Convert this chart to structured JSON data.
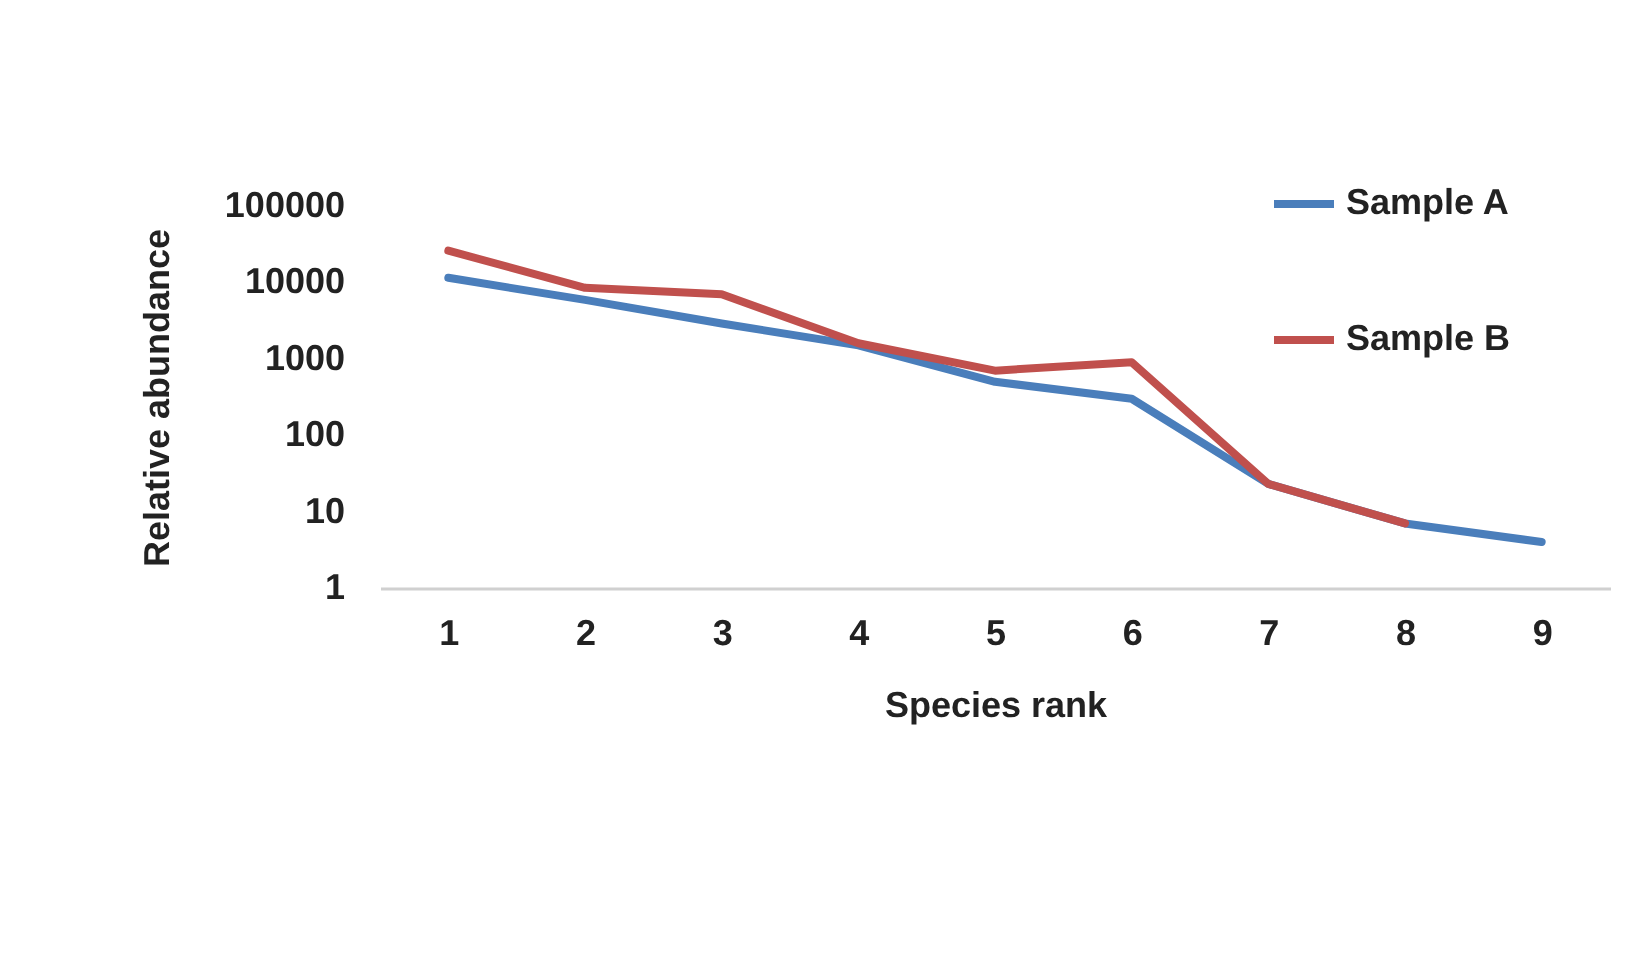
{
  "chart_data": {
    "type": "line",
    "xlabel": "Species rank",
    "ylabel": "Relative abundance",
    "categories": [
      "1",
      "2",
      "3",
      "4",
      "5",
      "6",
      "7",
      "8",
      "9"
    ],
    "series": [
      {
        "name": "Sample A",
        "color": "#4a7ebb",
        "values": [
          11500,
          5900,
          2900,
          1500,
          500,
          300,
          23,
          7,
          4
        ]
      },
      {
        "name": "Sample B",
        "color": "#c0504d",
        "values": [
          26000,
          8500,
          7000,
          1600,
          700,
          900,
          23,
          7,
          null
        ]
      }
    ],
    "log": "y",
    "ylim": [
      1,
      100000
    ],
    "yticks": [
      1,
      10,
      100,
      1000,
      10000,
      100000
    ],
    "grid": false,
    "legend": "top right",
    "marker": "none",
    "line_style": "solid"
  }
}
